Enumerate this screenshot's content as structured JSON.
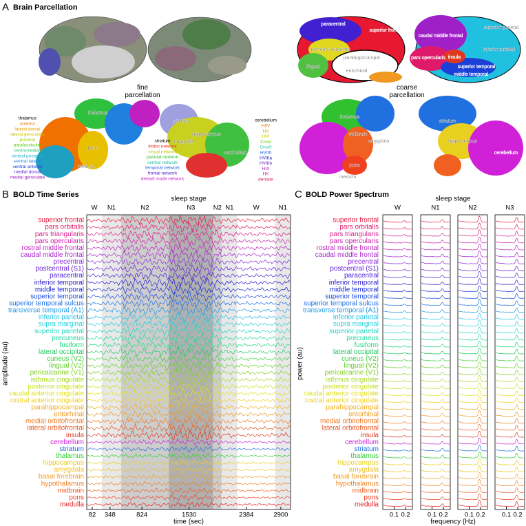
{
  "panel_a": {
    "letter": "A",
    "title": "Brain Parcellation",
    "fine_caption": "fine parcellation",
    "coarse_caption": "coarse parcellation",
    "fine_subcortical_labels": [
      "thalamus",
      "striatum",
      "amygdala",
      "hippocampus",
      "pons",
      "medulla",
      "cerebellum"
    ],
    "thalamus_legend": [
      {
        "text": "thalamus",
        "color": "#000000"
      },
      {
        "text": "anterior",
        "color": "#f07800"
      },
      {
        "text": "lateral dorsal",
        "color": "#e8a000"
      },
      {
        "text": "lateral geniculate",
        "color": "#c8c400"
      },
      {
        "text": "pulvinar",
        "color": "#a0d400"
      },
      {
        "text": "parafascicular",
        "color": "#5cc800"
      },
      {
        "text": "centromedian",
        "color": "#20c880"
      },
      {
        "text": "ventral posterior",
        "color": "#20b0c8"
      },
      {
        "text": "ventral lateral",
        "color": "#2080e0"
      },
      {
        "text": "ventral anterior",
        "color": "#2040d8"
      },
      {
        "text": "medial dorsal",
        "color": "#6020d0"
      },
      {
        "text": "medial geniculate",
        "color": "#a020c0"
      }
    ],
    "striatum_legend": [
      {
        "text": "striatum",
        "color": "#000000"
      },
      {
        "text": "limbic network",
        "color": "#e83020"
      },
      {
        "text": "visual network",
        "color": "#b8c800"
      },
      {
        "text": "parietal network",
        "color": "#30c030"
      },
      {
        "text": "central network",
        "color": "#20c0a0"
      },
      {
        "text": "temporal network",
        "color": "#2060e0"
      },
      {
        "text": "frontal network",
        "color": "#5020d0"
      },
      {
        "text": "default mode network",
        "color": "#c020c0"
      }
    ],
    "cerebellum_legend": [
      {
        "text": "cerebellum",
        "color": "#000000"
      },
      {
        "text": "HIIV",
        "color": "#f07000"
      },
      {
        "text": "HV",
        "color": "#e0a000"
      },
      {
        "text": "HVI",
        "color": "#c8c800"
      },
      {
        "text": "CrusI",
        "color": "#60c000"
      },
      {
        "text": "CrusII",
        "color": "#20c0a0"
      },
      {
        "text": "HVIIb",
        "color": "#2060e0"
      },
      {
        "text": "HVIIIa",
        "color": "#2020c0"
      },
      {
        "text": "HVIIIb",
        "color": "#6020c0"
      },
      {
        "text": "HIX",
        "color": "#a020c0"
      },
      {
        "text": "HX",
        "color": "#c020a0"
      },
      {
        "text": "dentate",
        "color": "#d02060"
      }
    ],
    "coarse_cortex_labels": [
      "paracentral",
      "superior frontal",
      "posterior cingulate",
      "lingual",
      "parahippocampal",
      "entorhinal",
      "caudal middle frontal",
      "superior parietal",
      "inferior parietal",
      "pars opercularis",
      "insula",
      "superior temporal",
      "middle temporal"
    ],
    "coarse_subcortical_labels": [
      "thalamus",
      "striatum",
      "hippocampus",
      "amygdala",
      "midbrain",
      "pons",
      "cerebellum",
      "medulla"
    ]
  },
  "chart_data": [
    {
      "type": "timeseries",
      "letter": "B",
      "title": "BOLD Time Series",
      "stage_axis_label": "sleep stage",
      "stages": [
        {
          "label": "W",
          "start": 0,
          "end": 225,
          "color": "#ffffff"
        },
        {
          "label": "N1",
          "start": 225,
          "end": 515,
          "color": "#e8e8e8"
        },
        {
          "label": "N2",
          "start": 515,
          "end": 1225,
          "color": "#cdcdcd"
        },
        {
          "label": "N3",
          "start": 1225,
          "end": 1890,
          "color": "#b0b0b0"
        },
        {
          "label": "N2",
          "start": 1890,
          "end": 2015,
          "color": "#cdcdcd"
        },
        {
          "label": "N1",
          "start": 2015,
          "end": 2250,
          "color": "#e8e8e8"
        },
        {
          "label": "W",
          "start": 2250,
          "end": 2815,
          "color": "#ffffff"
        },
        {
          "label": "N1",
          "start": 2815,
          "end": 3045,
          "color": "#e8e8e8"
        }
      ],
      "xlabel": "time (sec)",
      "ylabel": "amplitude (au)",
      "xlim": [
        0,
        3045
      ],
      "xticks": [
        82,
        348,
        824,
        1530,
        2384,
        2900
      ],
      "series": [
        {
          "name": "superior frontal",
          "color": "#e8173f"
        },
        {
          "name": "pars orbitalis",
          "color": "#e01a6a"
        },
        {
          "name": "pars triangularis",
          "color": "#d81e8a"
        },
        {
          "name": "pars opercularis",
          "color": "#d021a8"
        },
        {
          "name": "rostral middle frontal",
          "color": "#c024c0"
        },
        {
          "name": "caudal middle frontal",
          "color": "#a926d0"
        },
        {
          "name": "precentral",
          "color": "#8a28d8"
        },
        {
          "name": "postcentral (S1)",
          "color": "#6a22d8"
        },
        {
          "name": "paracentral",
          "color": "#4a1ed8"
        },
        {
          "name": "inferior temporal",
          "color": "#2a1ad0"
        },
        {
          "name": "middle temporal",
          "color": "#1a2ad8"
        },
        {
          "name": "superior temporal",
          "color": "#1a4ae0"
        },
        {
          "name": "superior temporal sulcus",
          "color": "#1a70e8"
        },
        {
          "name": "transverse temporal (A1)",
          "color": "#1a98e8"
        },
        {
          "name": "inferior parietal",
          "color": "#20c0e8"
        },
        {
          "name": "supra marginal",
          "color": "#20d0d8"
        },
        {
          "name": "superior parietal",
          "color": "#20d8c0"
        },
        {
          "name": "precuneus",
          "color": "#20d8a0"
        },
        {
          "name": "fusiform",
          "color": "#20d880"
        },
        {
          "name": "lateral occipital",
          "color": "#20c860"
        },
        {
          "name": "cuneus (V2)",
          "color": "#40d040"
        },
        {
          "name": "lingual (V2)",
          "color": "#60d020"
        },
        {
          "name": "pericalcarine (V1)",
          "color": "#80d020"
        },
        {
          "name": "isthmus cingulate",
          "color": "#a8d820"
        },
        {
          "name": "posterior cingulate",
          "color": "#c8e020"
        },
        {
          "name": "caudal anterior cingulate",
          "color": "#e0e020"
        },
        {
          "name": "rostral anterior cingulate",
          "color": "#f0d020"
        },
        {
          "name": "parahippocampal",
          "color": "#f0b020"
        },
        {
          "name": "entorhinal",
          "color": "#f09820"
        },
        {
          "name": "medial orbitofrontal",
          "color": "#f07820"
        },
        {
          "name": "lateral orbitofrontal",
          "color": "#e85820"
        },
        {
          "name": "insula",
          "color": "#e03820"
        },
        {
          "name": "cerebellum",
          "color": "#d020d8"
        },
        {
          "name": "striatum",
          "color": "#2070e0"
        },
        {
          "name": "thalamus",
          "color": "#30d030"
        },
        {
          "name": "hippocampus",
          "color": "#e8d020"
        },
        {
          "name": "amygdala",
          "color": "#f0c020"
        },
        {
          "name": "basal forebrain",
          "color": "#f0a020"
        },
        {
          "name": "hypothalamus",
          "color": "#f08020"
        },
        {
          "name": "midbrain",
          "color": "#f06020"
        },
        {
          "name": "pons",
          "color": "#f04020"
        },
        {
          "name": "medulla",
          "color": "#e82020"
        }
      ]
    },
    {
      "type": "spectrum",
      "letter": "C",
      "title": "BOLD Power Spectrum",
      "stage_axis_label": "sleep stage",
      "stages": [
        "W",
        "N1",
        "N2",
        "N3"
      ],
      "xlabel": "frequency (Hz)",
      "ylabel": "power (au)",
      "xlim": [
        0,
        0.26
      ],
      "xticks": [
        0.1,
        0.2
      ],
      "series": [
        {
          "name": "superior frontal",
          "color": "#e8173f"
        },
        {
          "name": "pars orbitalis",
          "color": "#e01a6a"
        },
        {
          "name": "pars triangularis",
          "color": "#d81e8a"
        },
        {
          "name": "pars opercularis",
          "color": "#d021a8"
        },
        {
          "name": "rostral middle frontal",
          "color": "#c024c0"
        },
        {
          "name": "caudal middle frontal",
          "color": "#a926d0"
        },
        {
          "name": "precentral",
          "color": "#8a28d8"
        },
        {
          "name": "postcentral (S1)",
          "color": "#6a22d8"
        },
        {
          "name": "paracentral",
          "color": "#4a1ed8"
        },
        {
          "name": "inferior temporal",
          "color": "#2a1ad0"
        },
        {
          "name": "middle temporal",
          "color": "#1a2ad8"
        },
        {
          "name": "superior temporal",
          "color": "#1a4ae0"
        },
        {
          "name": "superior temporal sulcus",
          "color": "#1a70e8"
        },
        {
          "name": "transverse temporal (A1)",
          "color": "#1a98e8"
        },
        {
          "name": "inferior parietal",
          "color": "#20c0e8"
        },
        {
          "name": "supra marginal",
          "color": "#20d0d8"
        },
        {
          "name": "superior parietal",
          "color": "#20d8c0"
        },
        {
          "name": "precuneus",
          "color": "#20d8a0"
        },
        {
          "name": "fusiform",
          "color": "#20d880"
        },
        {
          "name": "lateral occipital",
          "color": "#20c860"
        },
        {
          "name": "cuneus (V2)",
          "color": "#40d040"
        },
        {
          "name": "lingual (V2)",
          "color": "#60d020"
        },
        {
          "name": "pericalcarine (V1)",
          "color": "#80d020"
        },
        {
          "name": "isthmus cingulate",
          "color": "#a8d820"
        },
        {
          "name": "posterior cingulate",
          "color": "#c8e020"
        },
        {
          "name": "caudal anterior cingulate",
          "color": "#e0e020"
        },
        {
          "name": "rostral anterior cingulate",
          "color": "#f0d020"
        },
        {
          "name": "parahippocampal",
          "color": "#f0b020"
        },
        {
          "name": "entorhinal",
          "color": "#f09820"
        },
        {
          "name": "medial orbitofrontal",
          "color": "#f07820"
        },
        {
          "name": "lateral orbitofrontal",
          "color": "#e85820"
        },
        {
          "name": "insula",
          "color": "#e03820"
        },
        {
          "name": "cerebellum",
          "color": "#d020d8"
        },
        {
          "name": "striatum",
          "color": "#2070e0"
        },
        {
          "name": "thalamus",
          "color": "#30d030"
        },
        {
          "name": "hippocampus",
          "color": "#e8d020"
        },
        {
          "name": "amygdala",
          "color": "#f0c020"
        },
        {
          "name": "basal forebrain",
          "color": "#f0a020"
        },
        {
          "name": "hypothalamus",
          "color": "#f08020"
        },
        {
          "name": "midbrain",
          "color": "#f06020"
        },
        {
          "name": "pons",
          "color": "#f04020"
        },
        {
          "name": "medulla",
          "color": "#e82020"
        }
      ]
    }
  ]
}
